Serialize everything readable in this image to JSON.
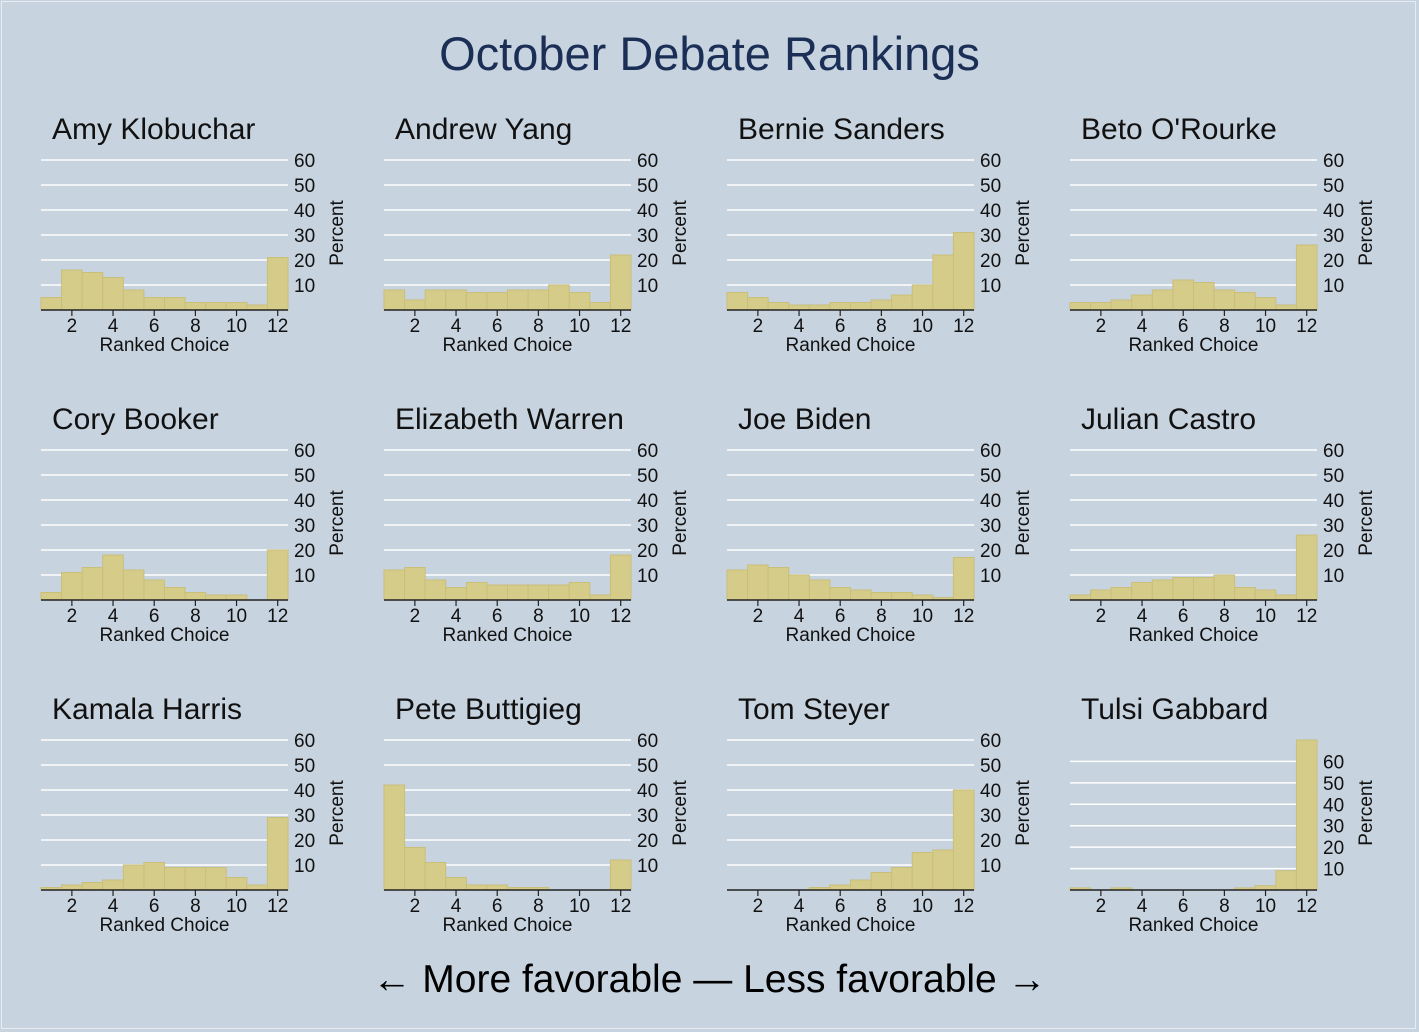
{
  "title": "October Debate Rankings",
  "footer": "← More favorable — Less favorable →",
  "colors": {
    "background": "#c7d3df",
    "bar_fill": "#d6cc8a",
    "bar_stroke": "#c9bf78",
    "grid": "#ffffff",
    "title": "#1b2f56"
  },
  "chart_data": [
    {
      "type": "bar",
      "title": "Amy Klobuchar",
      "xlabel": "Ranked Choice",
      "ylabel": "Percent",
      "x": [
        1,
        2,
        3,
        4,
        5,
        6,
        7,
        8,
        9,
        10,
        11,
        12
      ],
      "values": [
        5,
        16,
        15,
        13,
        8,
        5,
        5,
        3,
        3,
        3,
        2,
        21
      ],
      "xticks": [
        2,
        4,
        6,
        8,
        10,
        12
      ],
      "yticks": [
        10,
        20,
        30,
        40,
        50,
        60
      ],
      "ylim": [
        0,
        60
      ],
      "grid": true
    },
    {
      "type": "bar",
      "title": "Andrew Yang",
      "xlabel": "Ranked Choice",
      "ylabel": "Percent",
      "x": [
        1,
        2,
        3,
        4,
        5,
        6,
        7,
        8,
        9,
        10,
        11,
        12
      ],
      "values": [
        8,
        4,
        8,
        8,
        7,
        7,
        8,
        8,
        10,
        7,
        3,
        22
      ],
      "xticks": [
        2,
        4,
        6,
        8,
        10,
        12
      ],
      "yticks": [
        10,
        20,
        30,
        40,
        50,
        60
      ],
      "ylim": [
        0,
        60
      ],
      "grid": true
    },
    {
      "type": "bar",
      "title": "Bernie Sanders",
      "xlabel": "Ranked Choice",
      "ylabel": "Percent",
      "x": [
        1,
        2,
        3,
        4,
        5,
        6,
        7,
        8,
        9,
        10,
        11,
        12
      ],
      "values": [
        7,
        5,
        3,
        2,
        2,
        3,
        3,
        4,
        6,
        10,
        22,
        31
      ],
      "xticks": [
        2,
        4,
        6,
        8,
        10,
        12
      ],
      "yticks": [
        10,
        20,
        30,
        40,
        50,
        60
      ],
      "ylim": [
        0,
        60
      ],
      "grid": true
    },
    {
      "type": "bar",
      "title": "Beto O'Rourke",
      "xlabel": "Ranked Choice",
      "ylabel": "Percent",
      "x": [
        1,
        2,
        3,
        4,
        5,
        6,
        7,
        8,
        9,
        10,
        11,
        12
      ],
      "values": [
        3,
        3,
        4,
        6,
        8,
        12,
        11,
        8,
        7,
        5,
        2,
        26
      ],
      "xticks": [
        2,
        4,
        6,
        8,
        10,
        12
      ],
      "yticks": [
        10,
        20,
        30,
        40,
        50,
        60
      ],
      "ylim": [
        0,
        60
      ],
      "grid": true
    },
    {
      "type": "bar",
      "title": "Cory Booker",
      "xlabel": "Ranked Choice",
      "ylabel": "Percent",
      "x": [
        1,
        2,
        3,
        4,
        5,
        6,
        7,
        8,
        9,
        10,
        11,
        12
      ],
      "values": [
        3,
        11,
        13,
        18,
        12,
        8,
        5,
        3,
        2,
        2,
        0,
        20
      ],
      "xticks": [
        2,
        4,
        6,
        8,
        10,
        12
      ],
      "yticks": [
        10,
        20,
        30,
        40,
        50,
        60
      ],
      "ylim": [
        0,
        60
      ],
      "grid": true
    },
    {
      "type": "bar",
      "title": "Elizabeth Warren",
      "xlabel": "Ranked Choice",
      "ylabel": "Percent",
      "x": [
        1,
        2,
        3,
        4,
        5,
        6,
        7,
        8,
        9,
        10,
        11,
        12
      ],
      "values": [
        12,
        13,
        8,
        5,
        7,
        6,
        6,
        6,
        6,
        7,
        2,
        18
      ],
      "xticks": [
        2,
        4,
        6,
        8,
        10,
        12
      ],
      "yticks": [
        10,
        20,
        30,
        40,
        50,
        60
      ],
      "ylim": [
        0,
        60
      ],
      "grid": true
    },
    {
      "type": "bar",
      "title": "Joe Biden",
      "xlabel": "Ranked Choice",
      "ylabel": "Percent",
      "x": [
        1,
        2,
        3,
        4,
        5,
        6,
        7,
        8,
        9,
        10,
        11,
        12
      ],
      "values": [
        12,
        14,
        13,
        10,
        8,
        5,
        4,
        3,
        3,
        2,
        1,
        17
      ],
      "xticks": [
        2,
        4,
        6,
        8,
        10,
        12
      ],
      "yticks": [
        10,
        20,
        30,
        40,
        50,
        60
      ],
      "ylim": [
        0,
        60
      ],
      "grid": true
    },
    {
      "type": "bar",
      "title": "Julian Castro",
      "xlabel": "Ranked Choice",
      "ylabel": "Percent",
      "x": [
        1,
        2,
        3,
        4,
        5,
        6,
        7,
        8,
        9,
        10,
        11,
        12
      ],
      "values": [
        2,
        4,
        5,
        7,
        8,
        9,
        9,
        10,
        5,
        4,
        2,
        26
      ],
      "xticks": [
        2,
        4,
        6,
        8,
        10,
        12
      ],
      "yticks": [
        10,
        20,
        30,
        40,
        50,
        60
      ],
      "ylim": [
        0,
        60
      ],
      "grid": true
    },
    {
      "type": "bar",
      "title": "Kamala Harris",
      "xlabel": "Ranked Choice",
      "ylabel": "Percent",
      "x": [
        1,
        2,
        3,
        4,
        5,
        6,
        7,
        8,
        9,
        10,
        11,
        12
      ],
      "values": [
        1,
        2,
        3,
        4,
        10,
        11,
        9,
        9,
        9,
        5,
        2,
        29
      ],
      "xticks": [
        2,
        4,
        6,
        8,
        10,
        12
      ],
      "yticks": [
        10,
        20,
        30,
        40,
        50,
        60
      ],
      "ylim": [
        0,
        60
      ],
      "grid": true
    },
    {
      "type": "bar",
      "title": "Pete Buttigieg",
      "xlabel": "Ranked Choice",
      "ylabel": "Percent",
      "x": [
        1,
        2,
        3,
        4,
        5,
        6,
        7,
        8,
        9,
        10,
        11,
        12
      ],
      "values": [
        42,
        17,
        11,
        5,
        2,
        2,
        1,
        1,
        0,
        0,
        0,
        12
      ],
      "xticks": [
        2,
        4,
        6,
        8,
        10,
        12
      ],
      "yticks": [
        10,
        20,
        30,
        40,
        50,
        60
      ],
      "ylim": [
        0,
        60
      ],
      "grid": true
    },
    {
      "type": "bar",
      "title": "Tom Steyer",
      "xlabel": "Ranked Choice",
      "ylabel": "Percent",
      "x": [
        1,
        2,
        3,
        4,
        5,
        6,
        7,
        8,
        9,
        10,
        11,
        12
      ],
      "values": [
        0,
        0,
        0,
        0,
        1,
        2,
        4,
        7,
        9,
        15,
        16,
        40
      ],
      "xticks": [
        2,
        4,
        6,
        8,
        10,
        12
      ],
      "yticks": [
        10,
        20,
        30,
        40,
        50,
        60
      ],
      "ylim": [
        0,
        60
      ],
      "grid": true
    },
    {
      "type": "bar",
      "title": "Tulsi Gabbard",
      "xlabel": "Ranked Choice",
      "ylabel": "Percent",
      "x": [
        1,
        2,
        3,
        4,
        5,
        6,
        7,
        8,
        9,
        10,
        11,
        12
      ],
      "values": [
        1,
        0,
        1,
        0,
        0,
        0,
        0,
        0,
        1,
        2,
        9,
        70
      ],
      "xticks": [
        2,
        4,
        6,
        8,
        10,
        12
      ],
      "yticks": [
        10,
        20,
        30,
        40,
        50,
        60
      ],
      "ylim": [
        0,
        70
      ],
      "grid": true
    }
  ]
}
